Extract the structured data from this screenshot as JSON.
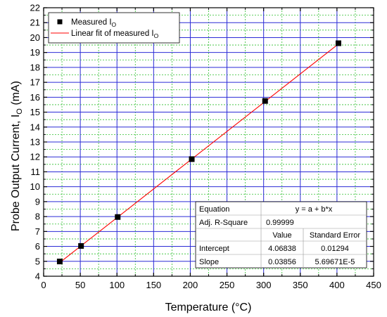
{
  "chart_data": {
    "type": "scatter",
    "xlabel": "Temperature (°C)",
    "ylabel_main": "Probe Output Current, I",
    "ylabel_sub": "O",
    "ylabel_unit": " (mA)",
    "xlim": [
      0,
      450
    ],
    "ylim": [
      4,
      22
    ],
    "x_ticks": [
      0,
      50,
      100,
      150,
      200,
      250,
      300,
      350,
      400,
      450
    ],
    "y_ticks": [
      4,
      5,
      6,
      7,
      8,
      9,
      10,
      11,
      12,
      13,
      14,
      15,
      16,
      17,
      18,
      19,
      20,
      21,
      22
    ],
    "grid": true,
    "legend_position": "top-left",
    "series": [
      {
        "name": "Measured I",
        "name_sub": "O",
        "kind": "points",
        "color": "#000000",
        "x": [
          22,
          51,
          101,
          202,
          302,
          402
        ],
        "y": [
          4.99,
          6.03,
          7.97,
          11.85,
          15.75,
          19.62
        ]
      },
      {
        "name": "Linear fit of measured I",
        "name_sub": "O",
        "kind": "line",
        "color": "#ff0000",
        "x": [
          22,
          402
        ],
        "y": [
          4.9167,
          19.5695
        ]
      }
    ],
    "fit_table": {
      "rows": [
        [
          "Equation",
          "y = a + b*x",
          ""
        ],
        [
          "Adj. R-Square",
          "0.99999",
          ""
        ],
        [
          "",
          "Value",
          "Standard Error"
        ],
        [
          "Intercept",
          "4.06838",
          "0.01294"
        ],
        [
          "Slope",
          "0.03856",
          "5.69671E-5"
        ]
      ]
    },
    "colors": {
      "major_grid": "#2b2bd6",
      "minor_grid": "#2fbf2f",
      "fit_line": "#ff0000",
      "marker": "#000000"
    }
  }
}
